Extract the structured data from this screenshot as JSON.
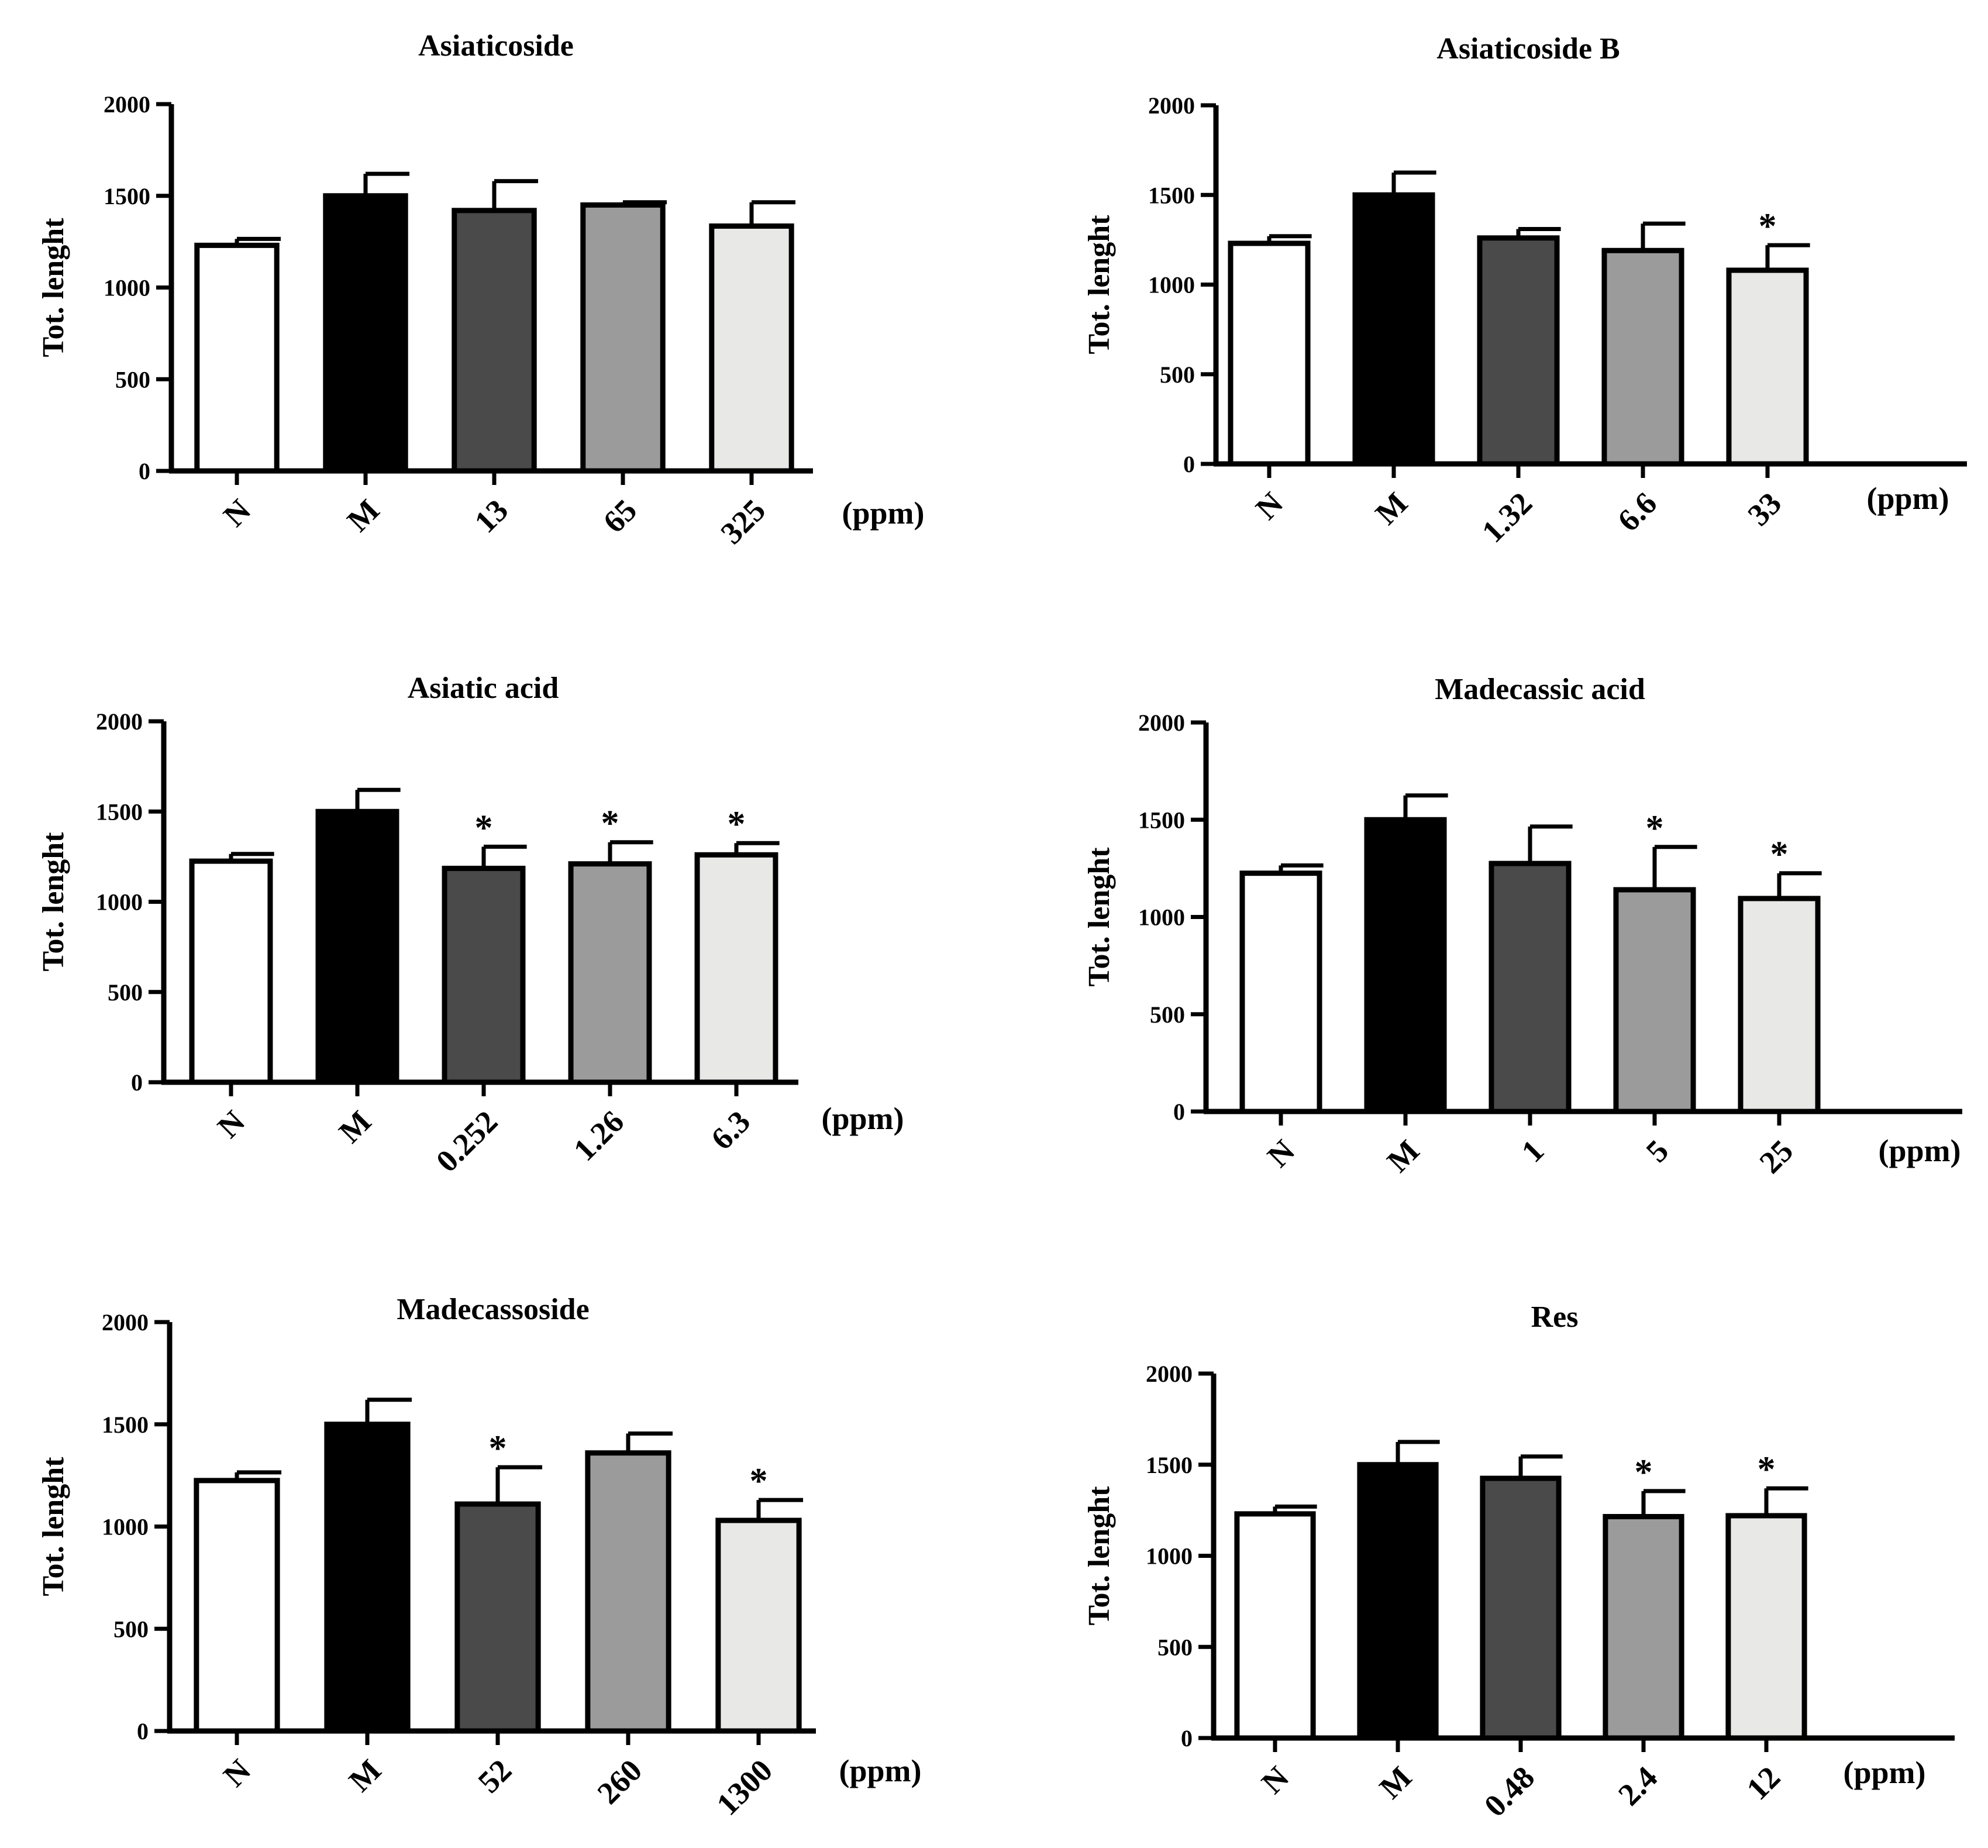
{
  "figure": {
    "type": "bar-chart-grid",
    "rows": 3,
    "cols": 2
  },
  "colors": {
    "N": "#ffffff",
    "M": "#000000",
    "dose1": "#4a4a4a",
    "dose2": "#9b9b9b",
    "dose3": "#e8e8e6",
    "stroke": "#000000"
  },
  "chart_data": [
    {
      "type": "bar",
      "title": "Asiaticoside",
      "ylabel": "Tot. lenght",
      "xlabel": "(ppm)",
      "ylim": [
        0,
        2000
      ],
      "yticks": [
        0,
        500,
        1000,
        1500,
        2000
      ],
      "categories": [
        "N",
        "M",
        "13",
        "65",
        "325"
      ],
      "values": [
        1230,
        1500,
        1420,
        1450,
        1335
      ],
      "errors": [
        35,
        120,
        160,
        15,
        130
      ],
      "significant": [
        false,
        false,
        false,
        false,
        false
      ],
      "marker": "*"
    },
    {
      "type": "bar",
      "title": "Asiaticoside B",
      "ylabel": "Tot. lenght",
      "xlabel": "(ppm)",
      "ylim": [
        0,
        2000
      ],
      "yticks": [
        0,
        500,
        1000,
        1500,
        2000
      ],
      "categories": [
        "N",
        "M",
        "1.32",
        "6.6",
        "33"
      ],
      "values": [
        1230,
        1500,
        1260,
        1190,
        1080
      ],
      "errors": [
        40,
        125,
        50,
        150,
        140
      ],
      "significant": [
        false,
        false,
        false,
        false,
        true
      ],
      "marker": "*"
    },
    {
      "type": "bar",
      "title": "Asiatic acid",
      "ylabel": "Tot. lenght",
      "xlabel": "(ppm)",
      "ylim": [
        0,
        2000
      ],
      "yticks": [
        0,
        500,
        1000,
        1500,
        2000
      ],
      "categories": [
        "N",
        "M",
        "0.252",
        "1.26",
        "6.3"
      ],
      "values": [
        1225,
        1500,
        1185,
        1210,
        1260
      ],
      "errors": [
        40,
        120,
        120,
        120,
        65
      ],
      "significant": [
        false,
        false,
        true,
        true,
        true
      ],
      "marker": "*"
    },
    {
      "type": "bar",
      "title": "Madecassic acid",
      "ylabel": "Tot. lenght",
      "xlabel": "(ppm)",
      "ylim": [
        0,
        2000
      ],
      "yticks": [
        0,
        500,
        1000,
        1500,
        2000
      ],
      "categories": [
        "N",
        "M",
        "1",
        "5",
        "25"
      ],
      "values": [
        1225,
        1500,
        1275,
        1140,
        1095
      ],
      "errors": [
        40,
        125,
        190,
        220,
        130
      ],
      "significant": [
        false,
        false,
        false,
        true,
        true
      ],
      "marker": "*"
    },
    {
      "type": "bar",
      "title": "Madecassoside",
      "ylabel": "Tot. lenght",
      "xlabel": "(ppm)",
      "ylim": [
        0,
        2000
      ],
      "yticks": [
        0,
        500,
        1000,
        1500,
        2000
      ],
      "categories": [
        "N",
        "M",
        "52",
        "260",
        "1300"
      ],
      "values": [
        1225,
        1500,
        1110,
        1360,
        1030
      ],
      "errors": [
        40,
        120,
        180,
        95,
        100
      ],
      "significant": [
        false,
        false,
        true,
        false,
        true
      ],
      "marker": "*"
    },
    {
      "type": "bar",
      "title": "Res",
      "ylabel": "Tot. lenght",
      "xlabel": "(ppm)",
      "ylim": [
        0,
        2000
      ],
      "yticks": [
        0,
        500,
        1000,
        1500,
        2000
      ],
      "categories": [
        "N",
        "M",
        "0.48",
        "2.4",
        "12"
      ],
      "values": [
        1230,
        1500,
        1425,
        1215,
        1220
      ],
      "errors": [
        40,
        125,
        120,
        140,
        150
      ],
      "significant": [
        false,
        false,
        false,
        true,
        true
      ],
      "marker": "*"
    }
  ]
}
